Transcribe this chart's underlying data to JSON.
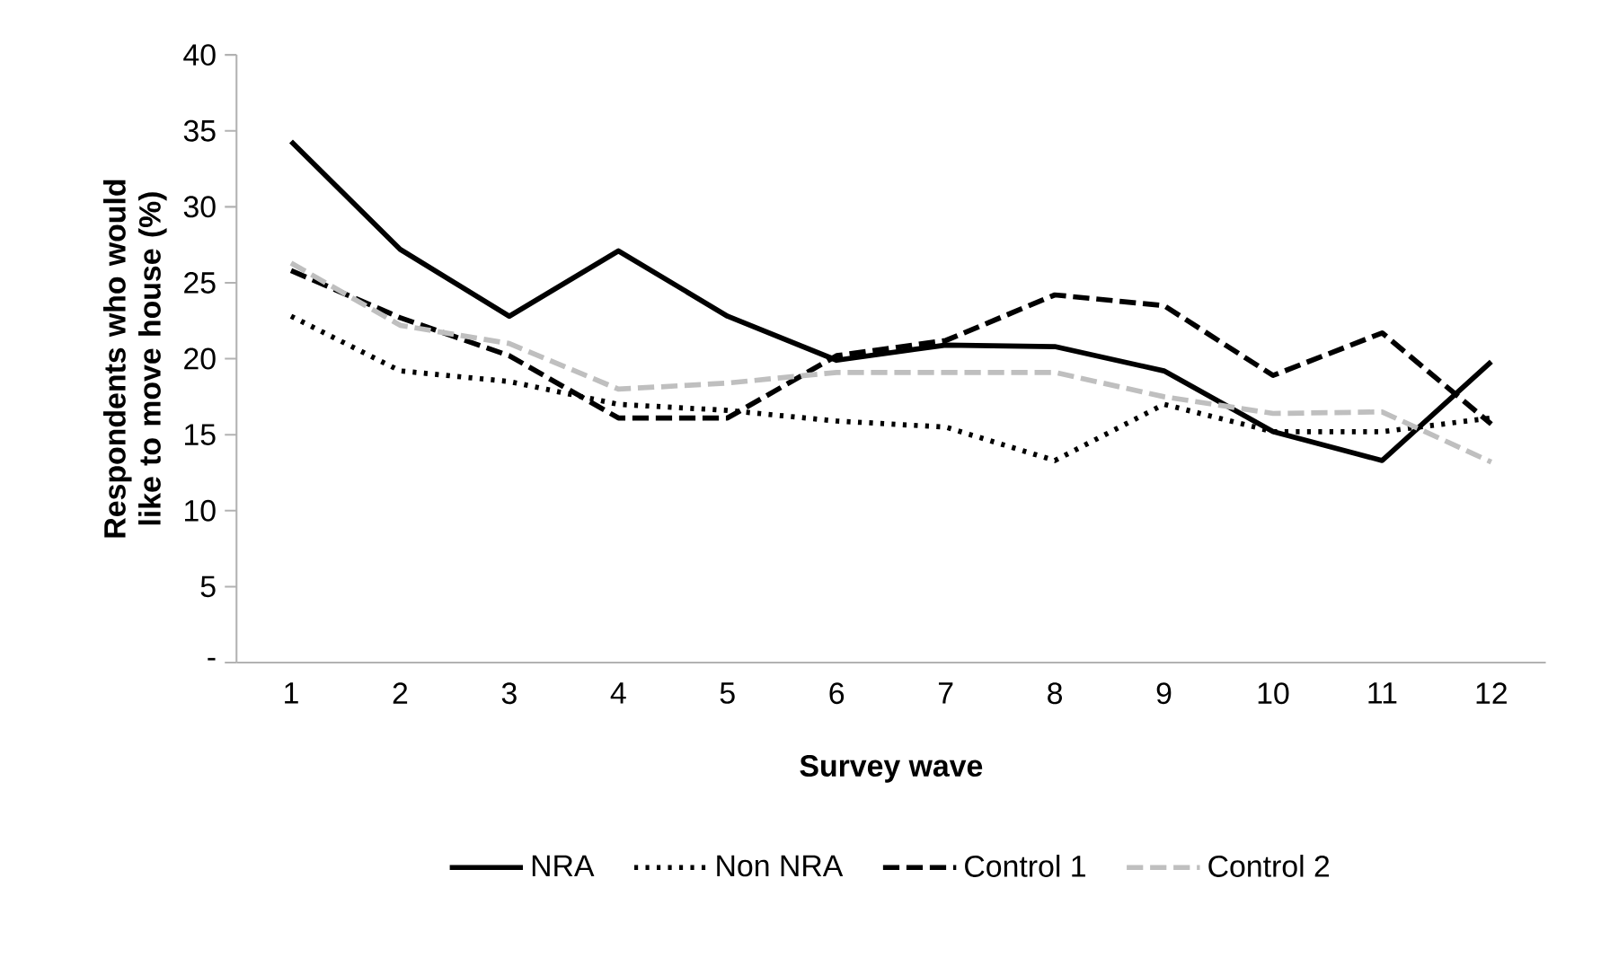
{
  "chart_data": {
    "type": "line",
    "xlabel": "Survey wave",
    "ylabel": "Respondents who would like to move house (%)",
    "categories": [
      "1",
      "2",
      "3",
      "4",
      "5",
      "6",
      "7",
      "8",
      "9",
      "10",
      "11",
      "12"
    ],
    "ylim": [
      0,
      40
    ],
    "yticks": [
      {
        "value": 0,
        "label": "-"
      },
      5,
      10,
      15,
      20,
      25,
      30,
      35,
      40
    ],
    "legend": "bottom",
    "grid": false,
    "series": [
      {
        "name": "NRA",
        "color": "#000000",
        "line_style": "solid",
        "values": [
          34.3,
          27.2,
          22.8,
          27.1,
          22.8,
          19.9,
          20.9,
          20.8,
          19.2,
          15.2,
          13.3,
          19.8
        ]
      },
      {
        "name": "Non NRA",
        "color": "#000000",
        "line_style": "dotted",
        "values": [
          22.8,
          19.2,
          18.5,
          17.0,
          16.6,
          15.9,
          15.5,
          13.3,
          17.0,
          15.2,
          15.2,
          16.1
        ]
      },
      {
        "name": "Control 1",
        "color": "#000000",
        "line_style": "dashed",
        "values": [
          25.8,
          22.7,
          20.2,
          16.1,
          16.1,
          20.2,
          21.2,
          24.2,
          23.5,
          18.9,
          21.7,
          15.7
        ]
      },
      {
        "name": "Control 2",
        "color": "#bfbfbf",
        "line_style": "dashed",
        "values": [
          26.3,
          22.2,
          21.0,
          18.0,
          18.4,
          19.1,
          19.1,
          19.1,
          17.5,
          16.4,
          16.5,
          13.2
        ]
      }
    ]
  }
}
